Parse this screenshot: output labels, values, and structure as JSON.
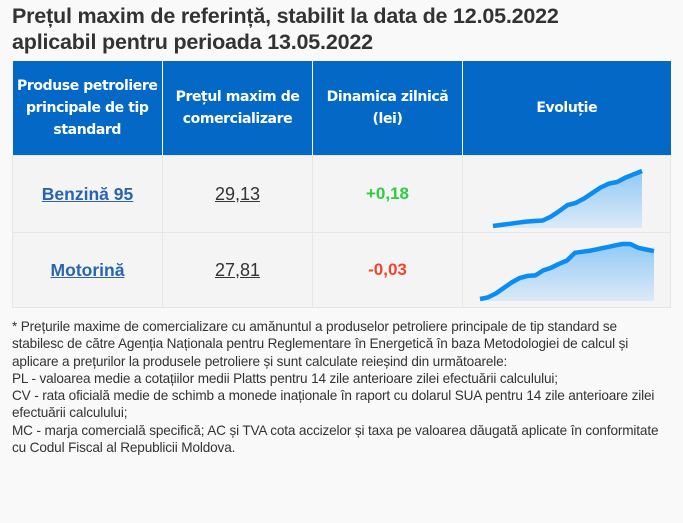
{
  "header": {
    "title_line1": "Prețul maxim de referință, stabilit la data de 12.05.2022",
    "title_line2": "aplicabil pentru perioada 13.05.2022"
  },
  "table": {
    "columns": [
      "Produse petroliere principale de tip standard",
      "Prețul maxim de comercializare",
      "Dinamica zilnică (lei)",
      "Evoluție"
    ],
    "rows": [
      {
        "product": "Benzină 95",
        "price": "29,13",
        "change": "+0,18",
        "trend": "up"
      },
      {
        "product": "Motorină",
        "price": "27,81",
        "change": "-0,03",
        "trend": "down"
      }
    ]
  },
  "colors": {
    "header_bg": "#0469c6",
    "link": "#2a64b0",
    "positive": "#2ecc40",
    "negative": "#f0442c",
    "spark_line": "#0a8cf5",
    "spark_fill_top": "#92c9f4",
    "spark_fill_bottom": "#dbeaf8"
  },
  "sparklines": {
    "benzina": [
      0.0,
      0.02,
      0.04,
      0.06,
      0.08,
      0.09,
      0.1,
      0.17,
      0.27,
      0.38,
      0.42,
      0.5,
      0.6,
      0.7,
      0.77,
      0.8,
      0.88,
      0.94,
      1.0
    ],
    "motorina": [
      0.0,
      0.03,
      0.1,
      0.2,
      0.3,
      0.38,
      0.42,
      0.43,
      0.52,
      0.57,
      0.64,
      0.7,
      0.84,
      0.86,
      0.88,
      0.91,
      0.94,
      0.97,
      1.0,
      1.0,
      0.93,
      0.9,
      0.87
    ]
  },
  "notes": {
    "intro": "* Prețurile maxime de comercializare cu amănuntul a produselor petroliere principale de tip standard se stabilesc de către Agenția Naționala pentru Reglementare în Energetică în baza Metodologiei de calcul și aplicare a prețurilor la produsele petroliere și sunt calculate reieșind din următoarele:",
    "pl": "PL - valoarea medie a cotațiilor medii Platts pentru 14 zile anterioare zilei efectuării calculului;",
    "cv": "CV - rata oficială medie de schimb a monede inaționale în raport cu dolarul SUA pentru 14 zile anterioare zilei efectuării calculului;",
    "mc": "MC - marja comercială specifică; AC și TVA cota accizelor și taxa pe valoarea dăugată aplicate în conformitate cu Codul Fiscal al Republicii Moldova."
  }
}
